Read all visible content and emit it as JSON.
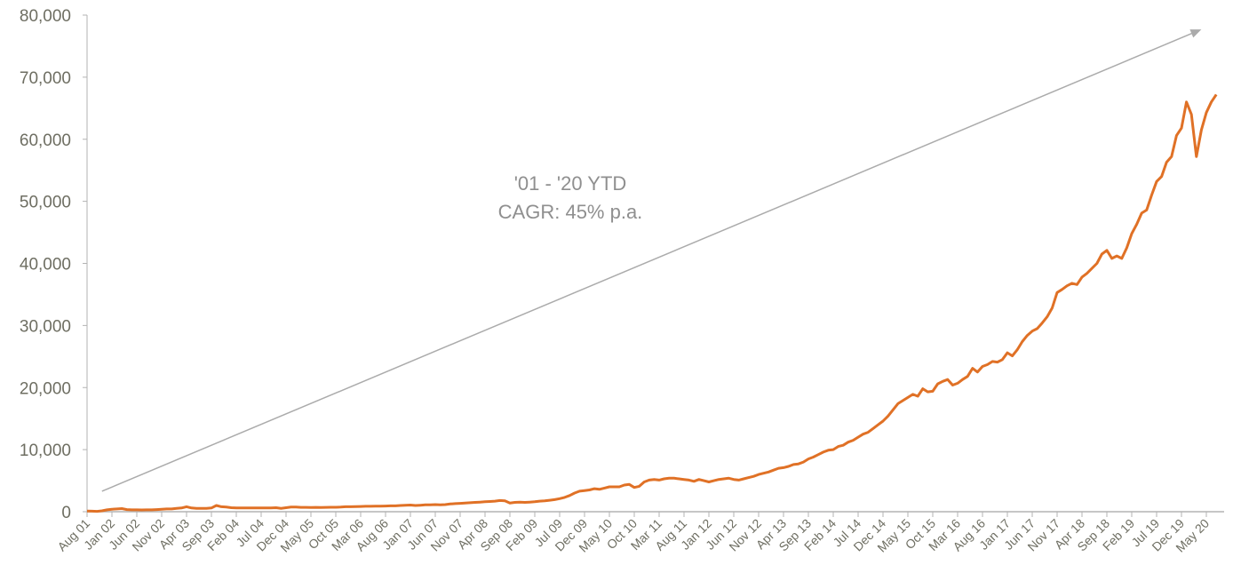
{
  "chart_data": {
    "type": "line",
    "title": "",
    "xlabel": "",
    "ylabel": "",
    "ylim": [
      0,
      80000
    ],
    "yticks": [
      "0",
      "10,000",
      "20,000",
      "30,000",
      "40,000",
      "50,000",
      "60,000",
      "70,000",
      "80,000"
    ],
    "grid": false,
    "legend": "none",
    "x_start": "Aug 01",
    "x_frequency": "monthly",
    "xtick_labels": [
      "Aug 01",
      "Jan 02",
      "Jun 02",
      "Nov 02",
      "Apr 03",
      "Sep 03",
      "Feb 04",
      "Jul 04",
      "Dec 04",
      "May 05",
      "Oct 05",
      "Mar 06",
      "Aug 06",
      "Jan 07",
      "Jun 07",
      "Nov 07",
      "Apr 08",
      "Sep 08",
      "Feb 09",
      "Jul 09",
      "Dec 09",
      "May 10",
      "Oct 10",
      "Mar 11",
      "Aug 11",
      "Jan 12",
      "Jun 12",
      "Nov 12",
      "Apr 13",
      "Sep 13",
      "Feb 14",
      "Jul 14",
      "Dec 14",
      "May 15",
      "Oct 15",
      "Mar 16",
      "Aug 16",
      "Jan 17",
      "Jun 17",
      "Nov 17",
      "Apr 18",
      "Sep 18",
      "Feb 19",
      "Jul 19",
      "Dec 19",
      "May 20"
    ],
    "series": [
      {
        "color": "#e07126",
        "values": [
          100,
          80,
          60,
          150,
          300,
          400,
          450,
          500,
          350,
          300,
          300,
          280,
          300,
          300,
          350,
          400,
          450,
          450,
          550,
          600,
          800,
          600,
          550,
          550,
          550,
          600,
          1000,
          800,
          750,
          650,
          600,
          600,
          600,
          600,
          600,
          600,
          620,
          600,
          650,
          550,
          650,
          750,
          750,
          700,
          700,
          680,
          700,
          680,
          700,
          720,
          720,
          750,
          800,
          800,
          820,
          850,
          870,
          880,
          900,
          900,
          920,
          950,
          950,
          1000,
          1050,
          1080,
          1000,
          1050,
          1100,
          1100,
          1150,
          1100,
          1150,
          1250,
          1300,
          1350,
          1400,
          1450,
          1500,
          1550,
          1600,
          1650,
          1700,
          1800,
          1750,
          1400,
          1500,
          1550,
          1500,
          1550,
          1600,
          1700,
          1750,
          1850,
          1950,
          2100,
          2300,
          2600,
          3000,
          3300,
          3400,
          3500,
          3700,
          3600,
          3800,
          4000,
          4000,
          4000,
          4300,
          4400,
          3900,
          4100,
          4800,
          5100,
          5200,
          5100,
          5300,
          5400,
          5400,
          5300,
          5200,
          5100,
          4900,
          5200,
          5000,
          4800,
          5000,
          5200,
          5300,
          5400,
          5200,
          5100,
          5300,
          5500,
          5700,
          6000,
          6200,
          6400,
          6700,
          7000,
          7100,
          7300,
          7600,
          7700,
          8000,
          8500,
          8800,
          9200,
          9600,
          9900,
          10000,
          10500,
          10700,
          11200,
          11500,
          12000,
          12500,
          12800,
          13400,
          14000,
          14600,
          15400,
          16400,
          17400,
          17900,
          18400,
          18900,
          18600,
          19800,
          19300,
          19400,
          20600,
          21000,
          21300,
          20400,
          20700,
          21300,
          21800,
          23100,
          22500,
          23400,
          23700,
          24200,
          24100,
          24500,
          25600,
          25100,
          26100,
          27400,
          28400,
          29100,
          29500,
          30400,
          31400,
          32800,
          35300,
          35800,
          36400,
          36800,
          36600,
          37800,
          38400,
          39200,
          40000,
          41500,
          42100,
          40800,
          41200,
          40800,
          42500,
          44800,
          46300,
          48100,
          48600,
          51000,
          53200,
          54000,
          56300,
          57200,
          60600,
          61800,
          66000,
          64000,
          57200,
          61500,
          64300,
          66000,
          67200
        ]
      }
    ],
    "annotation": {
      "lines": [
        "'01 - '20 YTD",
        "CAGR: 45% p.a."
      ],
      "arrow_color": "#ababab",
      "arrow_from": {
        "x": "Nov 01",
        "y": 3300
      },
      "arrow_to": {
        "x": "Apr 20",
        "y": 77700
      }
    },
    "colors": {
      "axis": "#b3b3b3",
      "text": "#6e6e62",
      "annotation_text": "#8f8f8f"
    }
  }
}
